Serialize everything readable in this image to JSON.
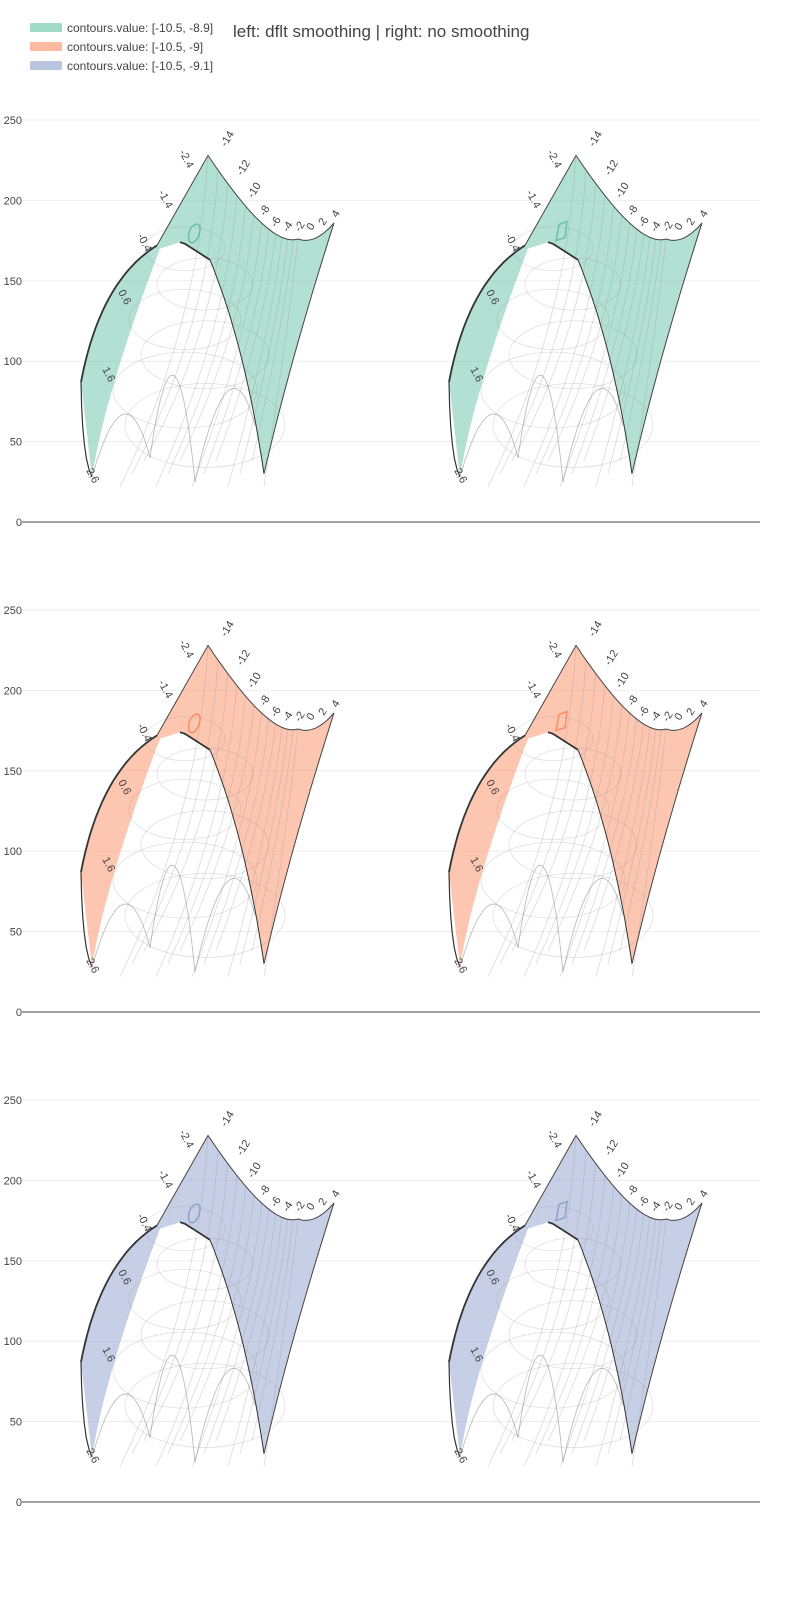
{
  "title": "left: dflt smoothing | right: no smoothing",
  "legend": [
    {
      "label": "contours.value: [-10.5, -8.9]",
      "color": "#66c2a5",
      "stroke": "#66c2a5"
    },
    {
      "label": "contours.value: [-10.5, -9]",
      "color": "#fc8d62",
      "stroke": "#fc8d62"
    },
    {
      "label": "contours.value: [-10.5, -9.1]",
      "color": "#8da0cb",
      "stroke": "#8da0cb"
    }
  ],
  "chart_data": [
    {
      "type": "carpet-contour",
      "series": [
        {
          "name": "contours.value: [-10.5, -8.9]",
          "color": "#66c2a5"
        }
      ],
      "panels": [
        "default smoothing",
        "no smoothing"
      ],
      "yticks": [
        0,
        50,
        100,
        150,
        200,
        250
      ],
      "ylim": [
        0,
        260
      ],
      "a_labels": [
        "-14",
        "-12",
        "-10",
        "-8",
        "-6",
        "-4",
        "-2",
        "0",
        "2",
        "4"
      ],
      "b_labels": [
        "-2.4",
        "-1.4",
        "-0.4",
        "0.6",
        "1.6",
        "2.6"
      ],
      "grid": true
    },
    {
      "type": "carpet-contour",
      "series": [
        {
          "name": "contours.value: [-10.5, -9]",
          "color": "#fc8d62"
        }
      ],
      "panels": [
        "default smoothing",
        "no smoothing"
      ],
      "yticks": [
        0,
        50,
        100,
        150,
        200,
        250
      ],
      "ylim": [
        0,
        260
      ],
      "a_labels": [
        "-14",
        "-12",
        "-10",
        "-8",
        "-6",
        "-4",
        "-2",
        "0",
        "2",
        "4"
      ],
      "b_labels": [
        "-2.4",
        "-1.4",
        "-0.4",
        "0.6",
        "1.6",
        "2.6"
      ],
      "grid": true
    },
    {
      "type": "carpet-contour",
      "series": [
        {
          "name": "contours.value: [-10.5, -9.1]",
          "color": "#8da0cb"
        }
      ],
      "panels": [
        "default smoothing",
        "no smoothing"
      ],
      "yticks": [
        0,
        50,
        100,
        150,
        200,
        250
      ],
      "ylim": [
        0,
        260
      ],
      "a_labels": [
        "-14",
        "-12",
        "-10",
        "-8",
        "-6",
        "-4",
        "-2",
        "0",
        "2",
        "4"
      ],
      "b_labels": [
        "-2.4",
        "-1.4",
        "-0.4",
        "0.6",
        "1.6",
        "2.6"
      ],
      "grid": true
    }
  ]
}
